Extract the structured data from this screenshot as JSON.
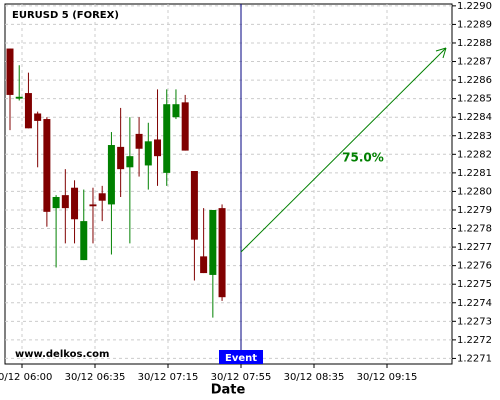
{
  "chart_data": {
    "type": "candlestick",
    "title": "EURUSD 5 (FOREX)",
    "xlabel": "Date",
    "watermark": "www.delkos.com",
    "event_label": "Event",
    "annotation": "75.0%",
    "up_color": "#008000",
    "down_color": "#800000",
    "grid": true,
    "xtick_labels": [
      "30/12 06:00",
      "30/12 06:35",
      "30/12 07:15",
      "30/12 07:55",
      "30/12 08:35",
      "30/12 09:15"
    ],
    "open": [
      1.22877,
      1.2285,
      1.22853,
      1.22842,
      1.22839,
      1.22791,
      1.22798,
      1.22802,
      1.22763,
      1.22793,
      1.22799,
      1.22793,
      1.22824,
      1.22813,
      1.22831,
      1.22814,
      1.22828,
      1.2281,
      1.2284,
      1.22848,
      1.22811,
      1.22765,
      1.22755,
      1.22791
    ],
    "high": [
      1.22877,
      1.22868,
      1.22864,
      1.22843,
      1.2284,
      1.22798,
      1.22812,
      1.22806,
      1.22801,
      1.22802,
      1.22803,
      1.22832,
      1.22845,
      1.2284,
      1.2284,
      1.22837,
      1.22855,
      1.22855,
      1.22855,
      1.22852,
      1.22811,
      1.22791,
      1.2279,
      1.22793
    ],
    "low": [
      1.22833,
      1.22849,
      1.22834,
      1.22813,
      1.22781,
      1.22759,
      1.22772,
      1.22772,
      1.22763,
      1.22772,
      1.22784,
      1.22766,
      1.22797,
      1.22772,
      1.22808,
      1.22801,
      1.22803,
      1.22803,
      1.22839,
      1.22822,
      1.22752,
      1.22756,
      1.22732,
      1.22741
    ],
    "close": [
      1.22852,
      1.22851,
      1.22834,
      1.22838,
      1.22789,
      1.22797,
      1.22791,
      1.22785,
      1.22784,
      1.22792,
      1.22795,
      1.22825,
      1.22812,
      1.22819,
      1.22823,
      1.22827,
      1.22819,
      1.22847,
      1.22847,
      1.22822,
      1.22774,
      1.22756,
      1.2279,
      1.22743
    ],
    "ylim": [
      1.22707,
      1.22901
    ],
    "yticks": [
      {
        "value": 1.2271,
        "label": "1.2271"
      },
      {
        "value": 1.2272,
        "label": "1.2272"
      },
      {
        "value": 1.2273,
        "label": "1.2273"
      },
      {
        "value": 1.2274,
        "label": "1.2274"
      },
      {
        "value": 1.2275,
        "label": "1.2275"
      },
      {
        "value": 1.2276,
        "label": "1.2276"
      },
      {
        "value": 1.2277,
        "label": "1.2277"
      },
      {
        "value": 1.2278,
        "label": "1.2278"
      },
      {
        "value": 1.2279,
        "label": "1.2279"
      },
      {
        "value": 1.228,
        "label": "1.2280"
      },
      {
        "value": 1.2281,
        "label": "1.2281"
      },
      {
        "value": 1.2282,
        "label": "1.2282"
      },
      {
        "value": 1.2283,
        "label": "1.2283"
      },
      {
        "value": 1.2284,
        "label": "1.2284"
      },
      {
        "value": 1.2285,
        "label": "1.2285"
      },
      {
        "value": 1.2286,
        "label": "1.2286"
      },
      {
        "value": 1.2287,
        "label": "1.2287"
      },
      {
        "value": 1.2288,
        "label": "1.2288"
      },
      {
        "value": 1.2289,
        "label": "1.2289"
      },
      {
        "value": 1.229,
        "label": "1.2290"
      }
    ]
  }
}
